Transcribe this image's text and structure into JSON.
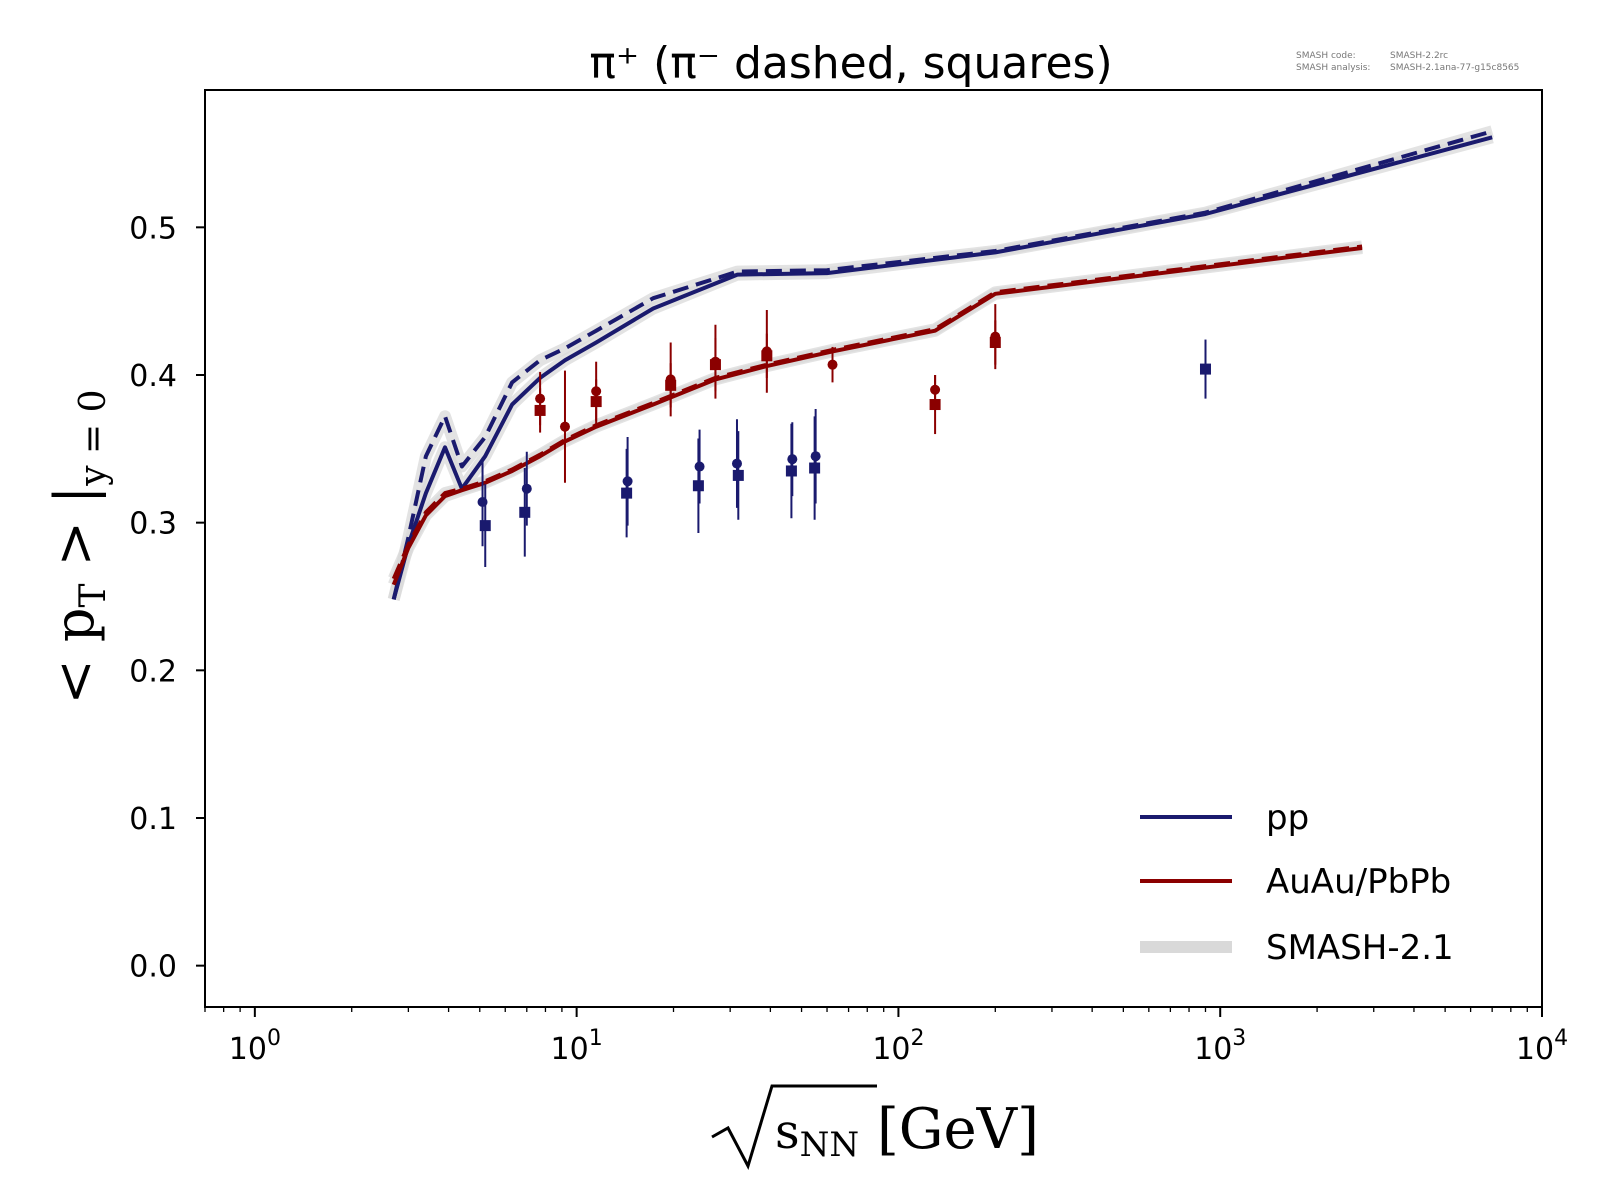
{
  "meta": {
    "code_label": "SMASH code:",
    "code_value": "SMASH-2.2rc",
    "analysis_label": "SMASH analysis:",
    "analysis_value": "SMASH-2.1ana-77-g15c8565"
  },
  "chart_data": {
    "type": "line",
    "title": "π⁺ (π⁻ dashed, squares)",
    "xlabel": "√s_NN [GeV]",
    "ylabel": "< p_T > |_y=0",
    "x_scale": "log",
    "xlim": [
      0.7,
      10000
    ],
    "ylim": [
      -0.028,
      0.593
    ],
    "x_tick_exponents": [
      "0",
      "1",
      "2",
      "3",
      "4"
    ],
    "x_tick_base": "10",
    "y_ticks": [
      "0.0",
      "0.1",
      "0.2",
      "0.3",
      "0.4",
      "0.5"
    ],
    "y_tick_values": [
      0.0,
      0.1,
      0.2,
      0.3,
      0.4,
      0.5
    ],
    "grid": false,
    "legend_position": "lower-right",
    "legend": [
      {
        "label": "pp",
        "color": "#1a1a6e",
        "style": "line"
      },
      {
        "label": "AuAu/PbPb",
        "color": "#8b0000",
        "style": "line"
      },
      {
        "label": "SMASH-2.1",
        "color": "#d9d9d9",
        "style": "band"
      }
    ],
    "series": [
      {
        "name": "pp",
        "particle": "pi+",
        "color": "#1a1a6e",
        "dash": false,
        "x": [
          2.7,
          3.0,
          3.4,
          3.9,
          4.4,
          5.2,
          6.3,
          7.7,
          9.2,
          11.5,
          17.3,
          31.6,
          60,
          200,
          900,
          7000
        ],
        "y": [
          0.248,
          0.285,
          0.32,
          0.351,
          0.323,
          0.345,
          0.38,
          0.398,
          0.41,
          0.422,
          0.445,
          0.468,
          0.469,
          0.483,
          0.509,
          0.561
        ]
      },
      {
        "name": "pp",
        "particle": "pi-",
        "color": "#1a1a6e",
        "dash": true,
        "x": [
          2.7,
          3.0,
          3.4,
          3.9,
          4.4,
          5.2,
          6.3,
          7.7,
          9.2,
          11.5,
          17.3,
          31.6,
          60,
          200,
          900,
          7000
        ],
        "y": [
          0.248,
          0.29,
          0.345,
          0.372,
          0.338,
          0.358,
          0.395,
          0.41,
          0.418,
          0.43,
          0.452,
          0.47,
          0.471,
          0.484,
          0.51,
          0.565
        ]
      },
      {
        "name": "AuAu/PbPb",
        "particle": "pi+",
        "color": "#8b0000",
        "dash": false,
        "x": [
          2.7,
          3.0,
          3.4,
          3.9,
          4.4,
          5.2,
          6.3,
          7.7,
          9.2,
          11.5,
          17.3,
          27,
          39,
          62.4,
          130,
          200,
          2760
        ],
        "y": [
          0.258,
          0.283,
          0.305,
          0.318,
          0.322,
          0.327,
          0.335,
          0.345,
          0.355,
          0.365,
          0.38,
          0.397,
          0.406,
          0.416,
          0.43,
          0.455,
          0.486
        ]
      },
      {
        "name": "AuAu/PbPb",
        "particle": "pi-",
        "color": "#8b0000",
        "dash": true,
        "x": [
          2.7,
          3.0,
          3.4,
          3.9,
          4.4,
          5.2,
          6.3,
          7.7,
          9.2,
          11.5,
          17.3,
          27,
          39,
          62.4,
          130,
          200,
          2760
        ],
        "y": [
          0.262,
          0.285,
          0.307,
          0.32,
          0.323,
          0.328,
          0.336,
          0.346,
          0.356,
          0.366,
          0.381,
          0.398,
          0.407,
          0.417,
          0.431,
          0.456,
          0.487
        ]
      }
    ],
    "points": [
      {
        "system": "pp",
        "color": "#1a1a6e",
        "marker": "circle",
        "x": [
          5.1,
          7.0,
          14.4,
          24.1,
          31.5,
          46.8,
          55.3
        ],
        "y": [
          0.314,
          0.323,
          0.328,
          0.338,
          0.34,
          0.343,
          0.345
        ],
        "err": [
          0.03,
          0.025,
          0.03,
          0.025,
          0.03,
          0.025,
          0.032
        ]
      },
      {
        "system": "pp",
        "color": "#1a1a6e",
        "marker": "square",
        "x": [
          5.2,
          6.9,
          14.3,
          23.9,
          31.8,
          46.5,
          54.9,
          900
        ],
        "y": [
          0.298,
          0.307,
          0.32,
          0.325,
          0.332,
          0.335,
          0.337,
          0.404
        ],
        "err": [
          0.028,
          0.03,
          0.03,
          0.032,
          0.03,
          0.032,
          0.035,
          0.02
        ]
      },
      {
        "system": "AuAu/PbPb",
        "color": "#8b0000",
        "marker": "circle",
        "x": [
          7.7,
          9.2,
          11.5,
          19.6,
          27,
          39,
          62.4,
          130,
          200
        ],
        "y": [
          0.384,
          0.365,
          0.389,
          0.397,
          0.409,
          0.416,
          0.407,
          0.39,
          0.426
        ],
        "err": [
          0.018,
          0.038,
          0.02,
          0.025,
          0.025,
          0.028,
          0.012,
          0.01,
          0.022
        ]
      },
      {
        "system": "AuAu/PbPb",
        "color": "#8b0000",
        "marker": "square",
        "x": [
          7.7,
          11.5,
          19.6,
          27,
          39,
          130,
          200
        ],
        "y": [
          0.376,
          0.382,
          0.393,
          0.407,
          0.413,
          0.38,
          0.422
        ],
        "err": [
          0.015,
          0.015,
          0.015,
          0.018,
          0.015,
          0.02,
          0.015
        ]
      }
    ]
  }
}
